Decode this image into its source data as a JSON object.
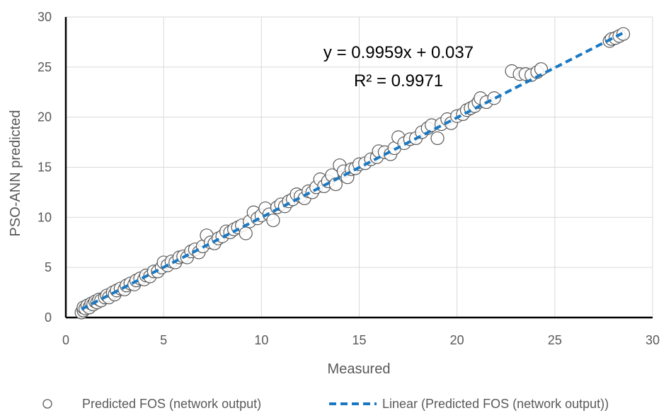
{
  "chart_data": {
    "type": "scatter",
    "xlabel": "Measured",
    "ylabel": "PSO-ANN predicted",
    "xlim": [
      0,
      30
    ],
    "ylim": [
      0,
      30
    ],
    "xticks": [
      "0",
      "5",
      "10",
      "15",
      "20",
      "25",
      "30"
    ],
    "yticks": [
      "0",
      "5",
      "10",
      "15",
      "20",
      "25",
      "30"
    ],
    "grid": true,
    "legend_placement": "bottom",
    "equation": "y = 0.9959x + 0.037",
    "r_squared": "R² = 0.9971",
    "series": [
      {
        "name": "Predicted FOS (network output)",
        "marker": "open-circle",
        "color": "#595959",
        "points": [
          [
            0.8,
            0.5
          ],
          [
            0.9,
            0.7
          ],
          [
            0.9,
            1.0
          ],
          [
            1.0,
            0.9
          ],
          [
            1.1,
            1.2
          ],
          [
            1.2,
            1.0
          ],
          [
            1.3,
            1.4
          ],
          [
            1.4,
            1.3
          ],
          [
            1.5,
            1.6
          ],
          [
            1.6,
            1.5
          ],
          [
            1.7,
            1.8
          ],
          [
            1.8,
            1.7
          ],
          [
            2.0,
            2.0
          ],
          [
            2.1,
            2.2
          ],
          [
            2.2,
            2.0
          ],
          [
            2.4,
            2.5
          ],
          [
            2.5,
            2.3
          ],
          [
            2.6,
            2.7
          ],
          [
            2.8,
            2.9
          ],
          [
            3.0,
            2.8
          ],
          [
            3.1,
            3.2
          ],
          [
            3.3,
            3.4
          ],
          [
            3.5,
            3.3
          ],
          [
            3.6,
            3.7
          ],
          [
            3.8,
            3.9
          ],
          [
            4.0,
            3.8
          ],
          [
            4.1,
            4.2
          ],
          [
            4.3,
            4.1
          ],
          [
            4.5,
            4.6
          ],
          [
            4.7,
            4.6
          ],
          [
            4.9,
            5.0
          ],
          [
            5.0,
            5.5
          ],
          [
            5.2,
            5.2
          ],
          [
            5.4,
            5.6
          ],
          [
            5.6,
            5.5
          ],
          [
            5.8,
            6.0
          ],
          [
            6.0,
            6.1
          ],
          [
            6.2,
            6.0
          ],
          [
            6.4,
            6.6
          ],
          [
            6.6,
            6.8
          ],
          [
            6.8,
            6.5
          ],
          [
            7.0,
            7.1
          ],
          [
            7.2,
            8.2
          ],
          [
            7.4,
            7.5
          ],
          [
            7.6,
            7.4
          ],
          [
            7.8,
            7.9
          ],
          [
            8.0,
            8.1
          ],
          [
            8.2,
            8.6
          ],
          [
            8.4,
            8.5
          ],
          [
            8.6,
            8.8
          ],
          [
            8.8,
            9.0
          ],
          [
            9.0,
            9.2
          ],
          [
            9.2,
            8.4
          ],
          [
            9.4,
            9.6
          ],
          [
            9.6,
            10.5
          ],
          [
            9.8,
            9.9
          ],
          [
            10.0,
            10.2
          ],
          [
            10.2,
            10.9
          ],
          [
            10.4,
            10.3
          ],
          [
            10.6,
            9.7
          ],
          [
            10.8,
            11.0
          ],
          [
            11.0,
            11.3
          ],
          [
            11.2,
            11.1
          ],
          [
            11.4,
            11.6
          ],
          [
            11.6,
            11.8
          ],
          [
            11.8,
            12.3
          ],
          [
            12.0,
            12.1
          ],
          [
            12.2,
            11.9
          ],
          [
            12.4,
            12.6
          ],
          [
            12.6,
            12.5
          ],
          [
            12.8,
            13.0
          ],
          [
            13.0,
            13.8
          ],
          [
            13.2,
            13.1
          ],
          [
            13.4,
            13.6
          ],
          [
            13.6,
            14.2
          ],
          [
            13.8,
            13.3
          ],
          [
            14.0,
            15.2
          ],
          [
            14.2,
            14.6
          ],
          [
            14.4,
            14.0
          ],
          [
            14.6,
            14.8
          ],
          [
            14.8,
            14.9
          ],
          [
            15.0,
            15.3
          ],
          [
            15.3,
            15.4
          ],
          [
            15.6,
            15.8
          ],
          [
            15.9,
            16.0
          ],
          [
            16.0,
            16.6
          ],
          [
            16.3,
            16.5
          ],
          [
            16.6,
            16.3
          ],
          [
            16.8,
            16.9
          ],
          [
            17.0,
            18.0
          ],
          [
            17.3,
            17.4
          ],
          [
            17.6,
            17.8
          ],
          [
            17.9,
            17.9
          ],
          [
            18.2,
            18.5
          ],
          [
            18.5,
            18.9
          ],
          [
            18.7,
            19.2
          ],
          [
            19.0,
            17.9
          ],
          [
            19.2,
            19.3
          ],
          [
            19.5,
            19.8
          ],
          [
            19.7,
            19.4
          ],
          [
            20.0,
            20.1
          ],
          [
            20.3,
            20.3
          ],
          [
            20.5,
            20.7
          ],
          [
            20.7,
            20.9
          ],
          [
            20.9,
            21.1
          ],
          [
            21.1,
            21.5
          ],
          [
            21.2,
            21.9
          ],
          [
            21.5,
            21.5
          ],
          [
            21.9,
            21.9
          ],
          [
            22.8,
            24.6
          ],
          [
            23.2,
            24.3
          ],
          [
            23.5,
            24.3
          ],
          [
            23.8,
            24.2
          ],
          [
            24.1,
            24.5
          ],
          [
            24.3,
            24.8
          ],
          [
            27.8,
            27.6
          ],
          [
            27.9,
            27.8
          ],
          [
            28.1,
            27.9
          ],
          [
            28.3,
            28.1
          ],
          [
            28.5,
            28.3
          ]
        ]
      },
      {
        "name": "Linear (Predicted FOS (network output))",
        "type": "trendline",
        "color": "#1a78c2",
        "slope": 0.9959,
        "intercept": 0.037,
        "x_range": [
          0.8,
          28.6
        ]
      }
    ]
  }
}
